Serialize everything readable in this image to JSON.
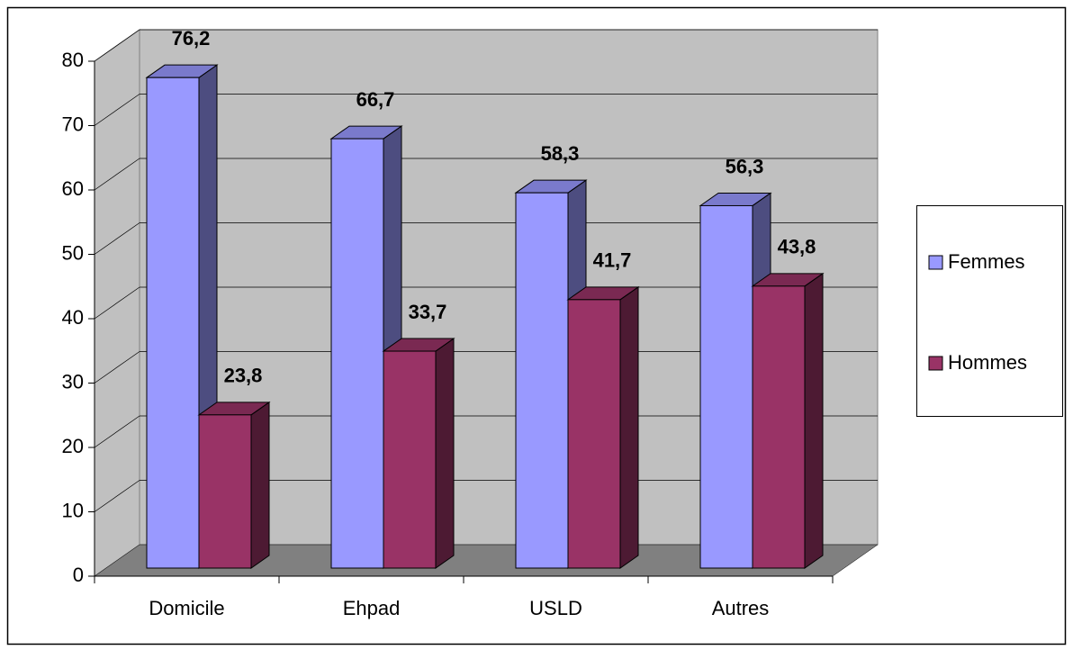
{
  "chart_data": {
    "type": "bar3d",
    "categories": [
      "Domicile",
      "Ehpad",
      "USLD",
      "Autres"
    ],
    "series": [
      {
        "name": "Femmes",
        "color": "#9999ff",
        "values": [
          76.2,
          66.7,
          58.3,
          56.3
        ],
        "value_labels": [
          "76,2",
          "66,7",
          "58,3",
          "56,3"
        ]
      },
      {
        "name": "Hommes",
        "color": "#993366",
        "values": [
          23.8,
          33.7,
          41.7,
          43.8
        ],
        "value_labels": [
          "23,8",
          "33,7",
          "41,7",
          "43,8"
        ]
      }
    ],
    "ylim": [
      0,
      80
    ],
    "yticks": [
      0,
      10,
      20,
      30,
      40,
      50,
      60,
      70,
      80
    ],
    "grid": true,
    "legend": "right"
  }
}
